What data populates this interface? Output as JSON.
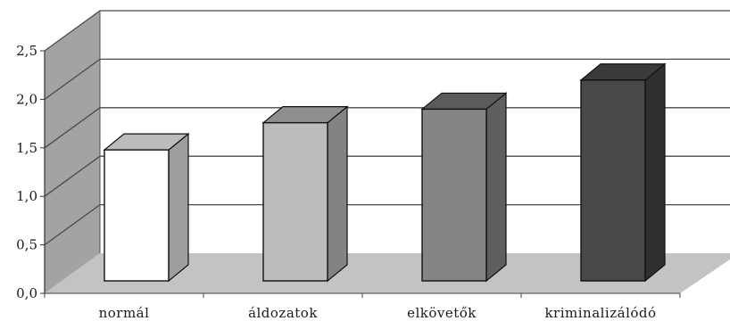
{
  "chart_data": {
    "type": "bar",
    "style": "3d-column",
    "categories": [
      "normál",
      "áldozatok",
      "elkövetők",
      "kriminalizálódó"
    ],
    "values": [
      1.35,
      1.63,
      1.77,
      2.07
    ],
    "ylim": [
      0,
      2.5
    ],
    "yticks": [
      "0,0",
      "0,5",
      "1,0",
      "1,5",
      "2,0",
      "2,5"
    ],
    "grid": true,
    "legend": "none",
    "colors": {
      "bars": [
        "#ffffff",
        "#bcbcbe",
        "#858587",
        "#47484a"
      ],
      "tops": [
        "#bcbcbc",
        "#8e8e90",
        "#5b5b5d",
        "#3a3a3c"
      ],
      "sides": [
        "#9e9ea0",
        "#838385",
        "#5f5f61",
        "#2f3032"
      ],
      "back_wall": "#ffffff",
      "side_wall": "#a3a3a3",
      "floor": "#c3c3c3",
      "gridline": "#4a4a4a"
    }
  }
}
